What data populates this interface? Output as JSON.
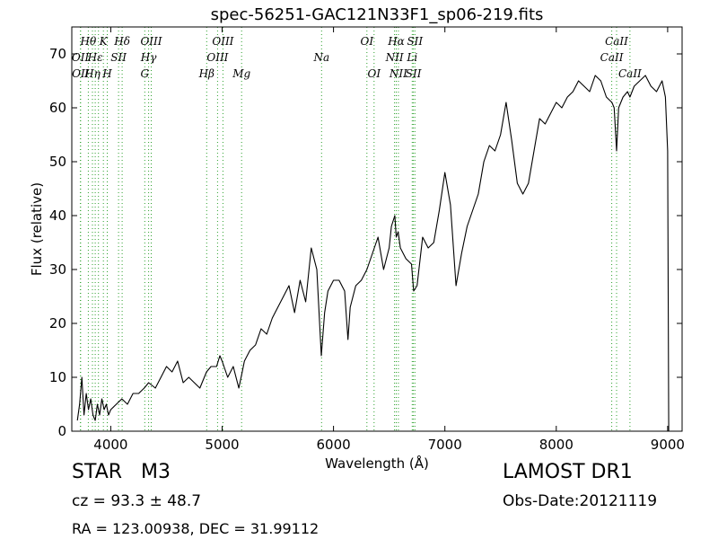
{
  "chart_data": {
    "type": "line",
    "title": "spec-56251-GAC121N33F1_sp06-219.fits",
    "xlabel": "Wavelength (Å)",
    "ylabel": "Flux (relative)",
    "xlim": [
      3650,
      9130
    ],
    "ylim": [
      0,
      75
    ],
    "xticks": [
      4000,
      5000,
      6000,
      7000,
      8000,
      9000
    ],
    "yticks": [
      0,
      10,
      20,
      30,
      40,
      50,
      60,
      70
    ],
    "grid": false,
    "series": [
      {
        "color": "#000000",
        "x": [
          3700,
          3720,
          3740,
          3760,
          3780,
          3800,
          3820,
          3840,
          3860,
          3880,
          3900,
          3920,
          3940,
          3960,
          3980,
          4000,
          4050,
          4100,
          4150,
          4200,
          4250,
          4300,
          4340,
          4400,
          4450,
          4500,
          4550,
          4600,
          4650,
          4700,
          4750,
          4800,
          4860,
          4900,
          4950,
          4980,
          5000,
          5050,
          5100,
          5150,
          5180,
          5200,
          5250,
          5300,
          5350,
          5400,
          5450,
          5500,
          5550,
          5600,
          5650,
          5700,
          5750,
          5800,
          5850,
          5890,
          5920,
          5950,
          6000,
          6050,
          6100,
          6130,
          6150,
          6200,
          6250,
          6300,
          6350,
          6400,
          6450,
          6500,
          6520,
          6550,
          6563,
          6580,
          6600,
          6650,
          6700,
          6720,
          6750,
          6800,
          6850,
          6900,
          6950,
          7000,
          7050,
          7100,
          7150,
          7200,
          7250,
          7300,
          7350,
          7400,
          7450,
          7500,
          7550,
          7600,
          7650,
          7700,
          7750,
          7800,
          7850,
          7900,
          7950,
          8000,
          8050,
          8100,
          8150,
          8200,
          8250,
          8300,
          8350,
          8400,
          8450,
          8500,
          8520,
          8542,
          8560,
          8600,
          8640,
          8662,
          8700,
          8750,
          8800,
          8850,
          8900,
          8950,
          8980,
          9000,
          9010
        ],
        "y": [
          2,
          5,
          10,
          3,
          7,
          4,
          6,
          3,
          2,
          5,
          3,
          6,
          4,
          5,
          3,
          4,
          5,
          6,
          5,
          7,
          7,
          8,
          9,
          8,
          10,
          12,
          11,
          13,
          9,
          10,
          9,
          8,
          11,
          12,
          12,
          14,
          13,
          10,
          12,
          8,
          11,
          13,
          15,
          16,
          19,
          18,
          21,
          23,
          25,
          27,
          22,
          28,
          24,
          34,
          30,
          14,
          22,
          26,
          28,
          28,
          26,
          17,
          23,
          27,
          28,
          30,
          33,
          36,
          30,
          34,
          38,
          40,
          36,
          37,
          34,
          32,
          31,
          26,
          27,
          36,
          34,
          35,
          41,
          48,
          42,
          27,
          33,
          38,
          41,
          44,
          50,
          53,
          52,
          55,
          61,
          54,
          46,
          44,
          46,
          52,
          58,
          57,
          59,
          61,
          60,
          62,
          63,
          65,
          64,
          63,
          66,
          65,
          62,
          61,
          60,
          52,
          60,
          62,
          63,
          62,
          64,
          65,
          66,
          64,
          63,
          65,
          62,
          52,
          0
        ]
      }
    ],
    "annotations": {
      "row1": [
        {
          "label": "Hθ",
          "x": 3798
        },
        {
          "label": "K",
          "x": 3934
        },
        {
          "label": "Hδ",
          "x": 4102
        },
        {
          "label": "OIII",
          "x": 4363
        },
        {
          "label": "OIII",
          "x": 5007
        },
        {
          "label": "OI",
          "x": 6300
        },
        {
          "label": "Hα",
          "x": 6563
        },
        {
          "label": "SII",
          "x": 6731
        },
        {
          "label": "CaII",
          "x": 8542
        }
      ],
      "row2": [
        {
          "label": "OII",
          "x": 3727
        },
        {
          "label": "Hε",
          "x": 3860
        },
        {
          "label": "SII",
          "x": 4070
        },
        {
          "label": "Hγ",
          "x": 4340
        },
        {
          "label": "OIII",
          "x": 4959
        },
        {
          "label": "Na",
          "x": 5893
        },
        {
          "label": "NII",
          "x": 6548
        },
        {
          "label": "Li",
          "x": 6707
        },
        {
          "label": "CaII",
          "x": 8498
        }
      ],
      "row3": [
        {
          "label": "OII",
          "x": 3729
        },
        {
          "label": "Hη",
          "x": 3835
        },
        {
          "label": "H",
          "x": 3968
        },
        {
          "label": "G",
          "x": 4305
        },
        {
          "label": "Hβ",
          "x": 4861
        },
        {
          "label": "Mg",
          "x": 5175
        },
        {
          "label": "OI",
          "x": 6364
        },
        {
          "label": "NII",
          "x": 6583
        },
        {
          "label": "SII",
          "x": 6717
        },
        {
          "label": "CaII",
          "x": 8662
        }
      ],
      "line_positions": [
        3727,
        3729,
        3798,
        3835,
        3860,
        3889,
        3934,
        3968,
        4070,
        4102,
        4305,
        4340,
        4363,
        4861,
        4959,
        5007,
        5175,
        5893,
        6300,
        6364,
        6548,
        6563,
        6583,
        6707,
        6717,
        6731,
        8498,
        8542,
        8662
      ],
      "line_color": "#2ca02c"
    }
  },
  "info": {
    "object_class": "STAR",
    "subclass": "M3",
    "survey": "LAMOST DR1",
    "cz": "cz = 93.3 ± 48.7",
    "obs_date": "Obs-Date:20121119",
    "coords": "RA = 123.00938, DEC = 31.99112"
  }
}
